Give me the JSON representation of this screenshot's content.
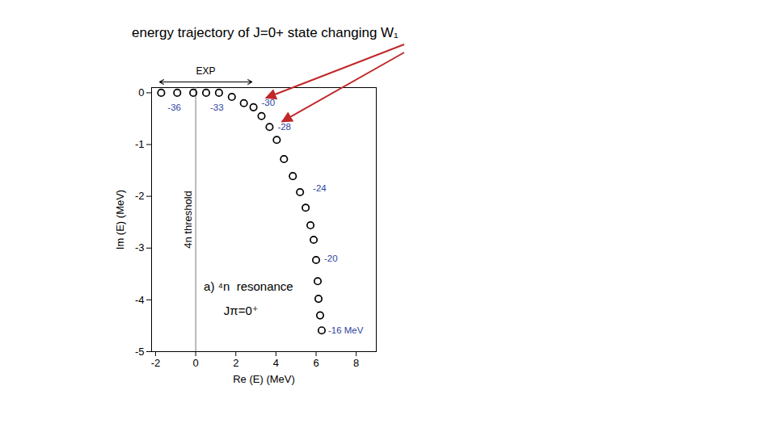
{
  "chart_data": {
    "type": "scatter",
    "title": "energy trajectory of J=0+ state changing W₁",
    "x_label": "Re (E) (MeV)",
    "y_label": "Im (E) (MeV)",
    "xlim": [
      -2.2,
      9
    ],
    "ylim": [
      -5,
      0.1
    ],
    "xticks": [
      -2,
      0,
      2,
      4,
      6,
      8
    ],
    "yticks": [
      0,
      -1,
      -2,
      -3,
      -4,
      -5
    ],
    "grid": false,
    "color": "#000000",
    "marker": "circle-open",
    "x": [
      -1.72,
      -0.92,
      -0.12,
      0.52,
      1.16,
      1.8,
      2.4,
      2.88,
      3.28,
      3.68,
      4.04,
      4.4,
      4.84,
      5.2,
      5.48,
      5.72,
      5.88,
      6.0,
      6.08,
      6.12,
      6.2,
      6.28
    ],
    "values": [
      0,
      0,
      0,
      0,
      0,
      -0.08,
      -0.2,
      -0.28,
      -0.45,
      -0.66,
      -0.91,
      -1.28,
      -1.61,
      -1.92,
      -2.22,
      -2.56,
      -2.84,
      -3.23,
      -3.64,
      -3.98,
      -4.3,
      -4.59
    ],
    "threshold": {
      "label": "4n threshold",
      "x": 0
    },
    "exp_range": {
      "label": "EXP",
      "x": [
        -1.8,
        2.8
      ]
    },
    "annotations": [
      {
        "text": "-36",
        "x": -1.4,
        "y": -0.28,
        "color": "#2e3f9e"
      },
      {
        "text": "-33",
        "x": 0.72,
        "y": -0.28,
        "color": "#2e3f9e"
      },
      {
        "text": "-30",
        "x": 3.28,
        "y": -0.2,
        "color": "#2e3f9e"
      },
      {
        "text": "-28",
        "x": 4.08,
        "y": -0.66,
        "color": "#2e3f9e"
      },
      {
        "text": "-24",
        "x": 5.84,
        "y": -1.84,
        "color": "#2e3f9e"
      },
      {
        "text": "-20",
        "x": 6.4,
        "y": -3.2,
        "color": "#2e3f9e"
      },
      {
        "text": "-16 MeV",
        "x": 6.6,
        "y": -4.59,
        "color": "#2e3f9e"
      },
      {
        "text": "a) ⁴n  resonance",
        "x": 0.4,
        "y": -3.75,
        "color": "#000000"
      },
      {
        "text": "Jπ=0⁺",
        "x": 1.4,
        "y": -4.22,
        "color": "#000000"
      }
    ]
  }
}
